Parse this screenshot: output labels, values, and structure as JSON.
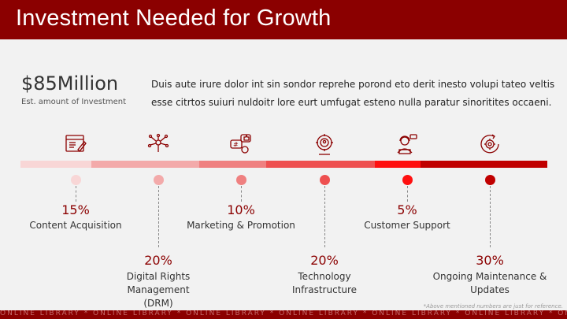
{
  "title": "Investment Needed for Growth",
  "amount": "$85Million",
  "amount_sub": "Est. amount of Investment",
  "description": "Duis aute irure dolor int sin sondor reprehe porond eto derit inesto volupi tateo veltis esse citrtos suiuri nuldoitr lore eurt umfugat esteno nulla paratur sinoritites occaeni.",
  "items": [
    {
      "pct": "15%",
      "label": "Content Acquisition",
      "icon": "content-icon",
      "color": "#f8d6d6"
    },
    {
      "pct": "20%",
      "label": "Digital Rights Management (DRM)",
      "icon": "network-icon",
      "color": "#f3aaaa"
    },
    {
      "pct": "10%",
      "label": "Marketing & Promotion",
      "icon": "social-media-icon",
      "color": "#ef8080"
    },
    {
      "pct": "20%",
      "label": "Technology Infrastructure",
      "icon": "gear-person-icon",
      "color": "#ee5050"
    },
    {
      "pct": "5%",
      "label": "Customer Support",
      "icon": "support-agent-icon",
      "color": "#ff1010"
    },
    {
      "pct": "30%",
      "label": "Ongoing Maintenance & Updates",
      "icon": "refresh-gear-icon",
      "color": "#c00000"
    }
  ],
  "note": "*Above mentioned numbers are just for reference.",
  "footer": "ONLINE LIBRARY * ONLINE LIBRARY * ONLINE LIBRARY * ONLINE LIBRARY * ONLINE LIBRARY * ONLINE LIBRARY * ONLINE LIBRARY",
  "colors": {
    "header": "#8b0000",
    "accent": "#8b0000"
  }
}
